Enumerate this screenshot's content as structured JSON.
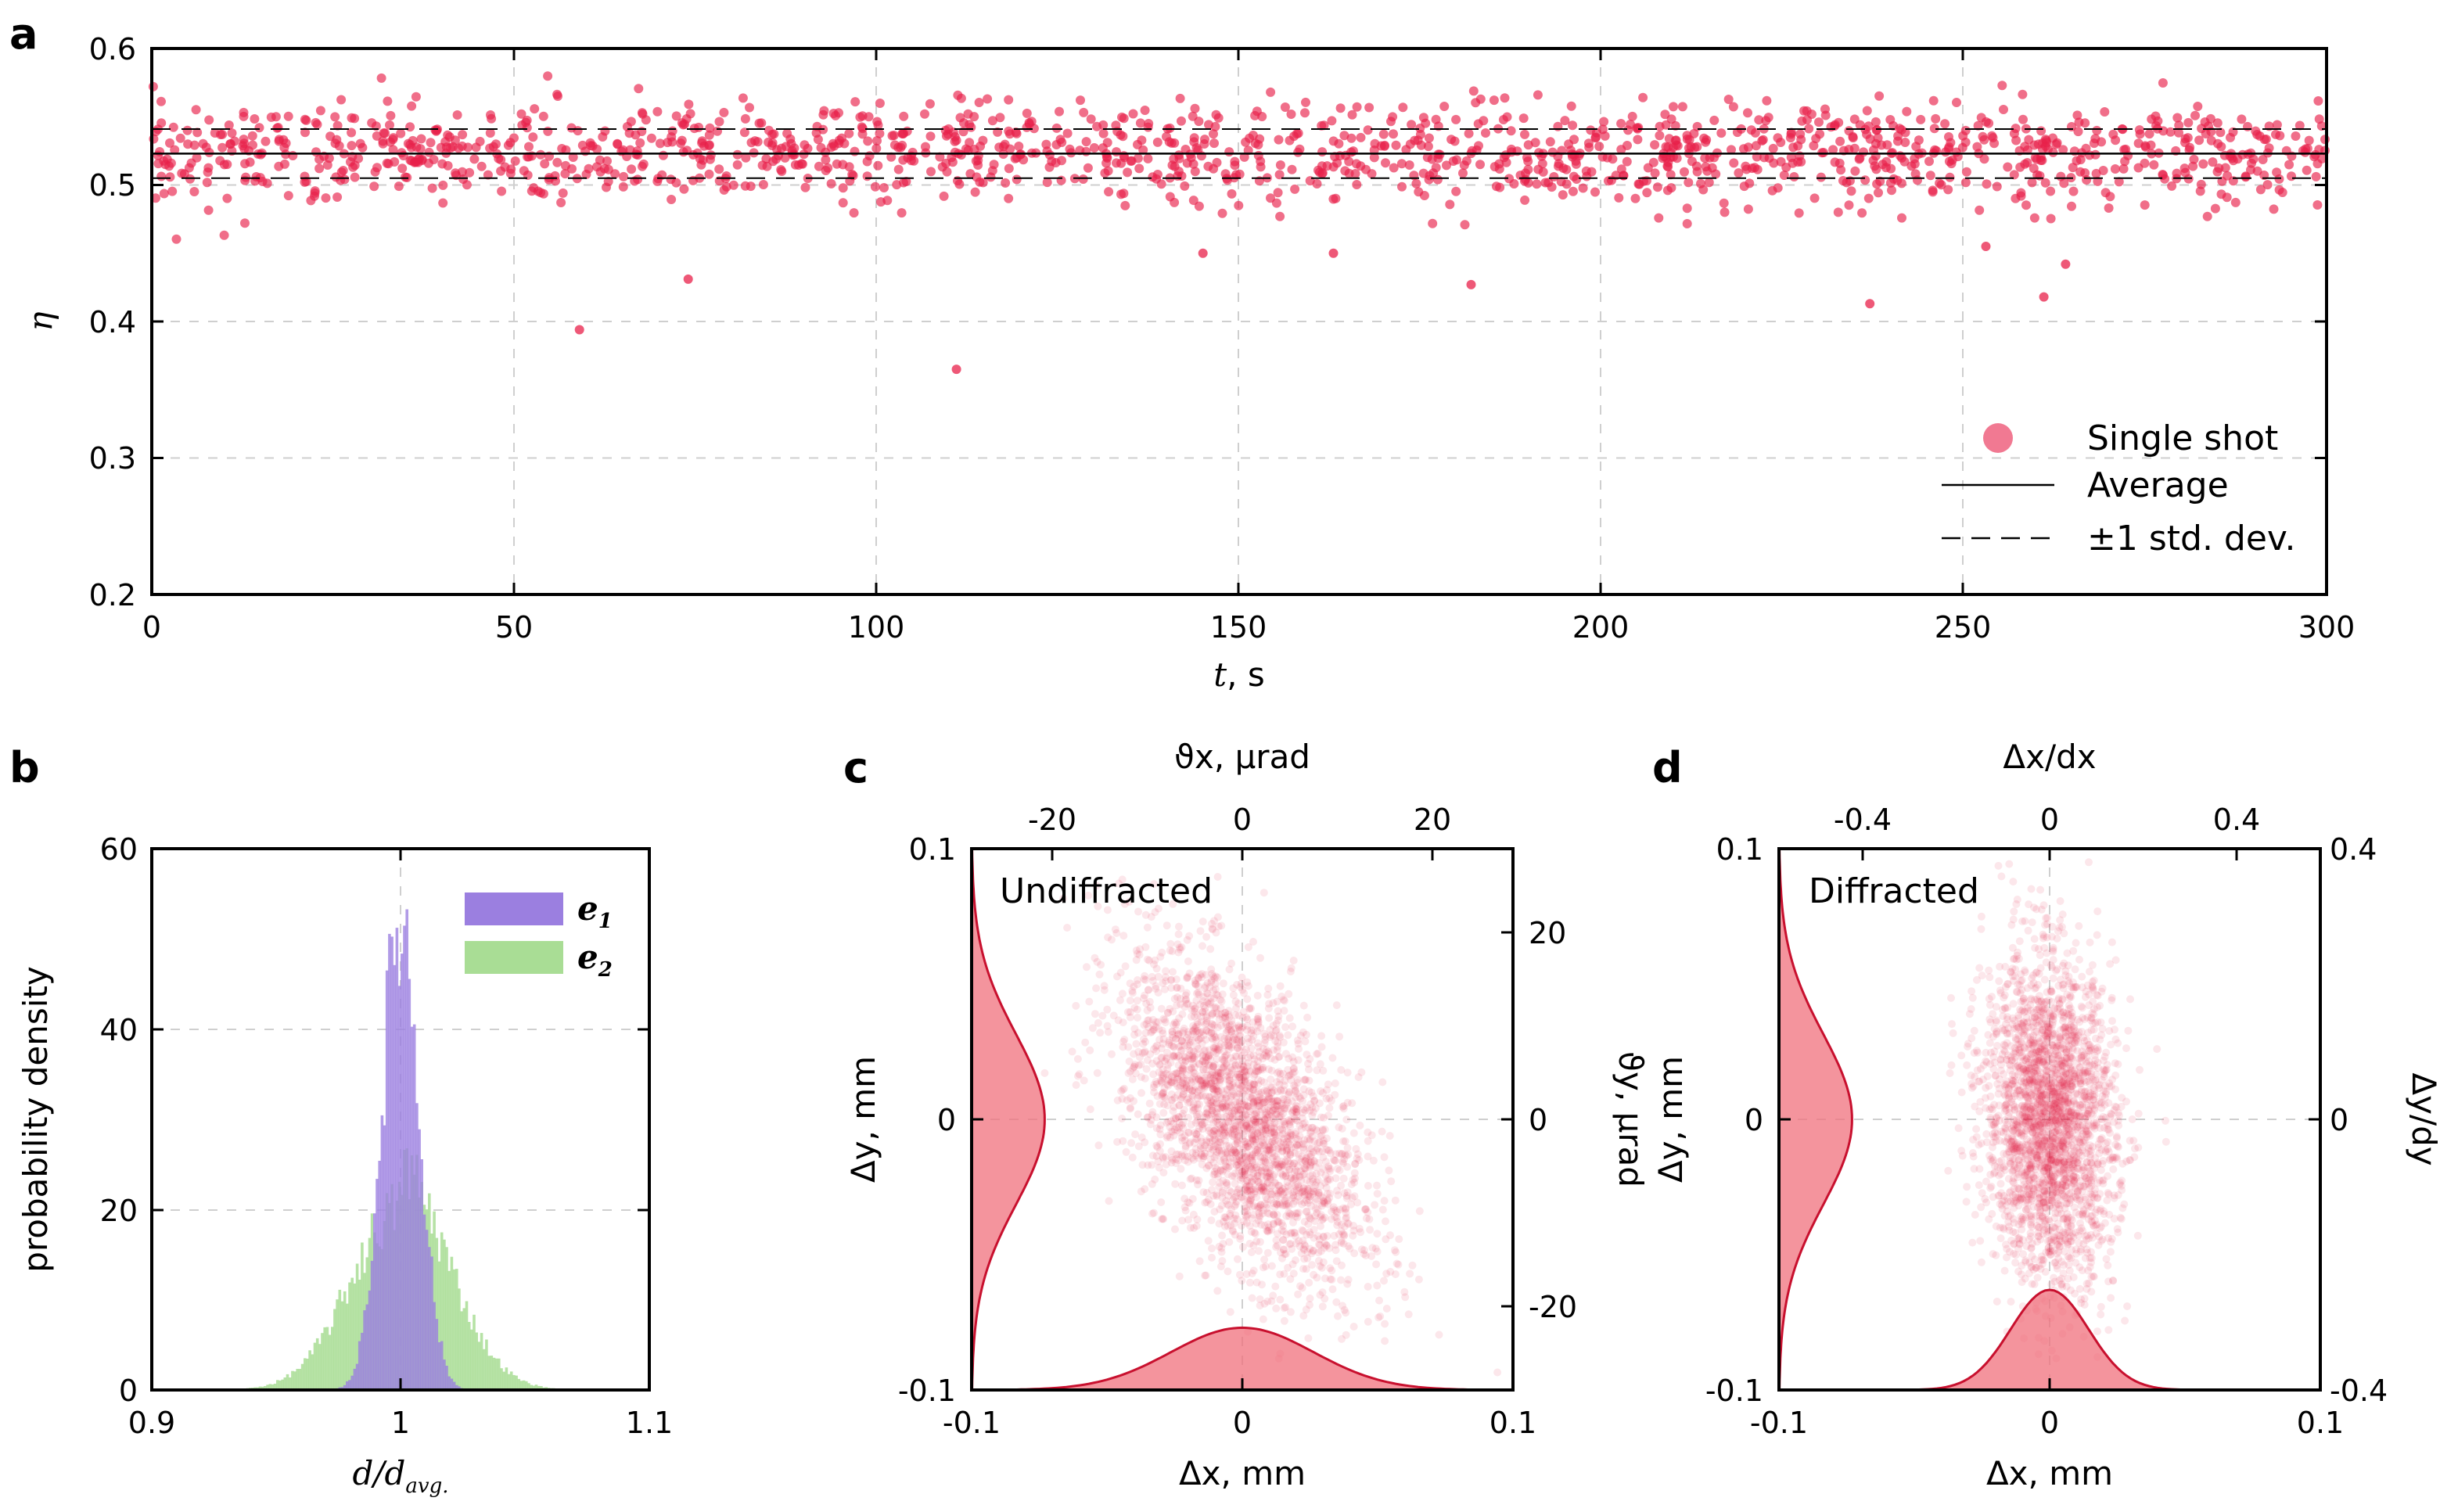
{
  "chart_data": [
    {
      "panel": "a",
      "type": "scatter",
      "xlabel": "t",
      "xlabel_unit": ", s",
      "ylabel": "η",
      "xlim": [
        0,
        300
      ],
      "ylim": [
        0.2,
        0.6
      ],
      "xticks": [
        0,
        50,
        100,
        150,
        200,
        250,
        300
      ],
      "yticks": [
        0.2,
        0.3,
        0.4,
        0.5,
        0.6
      ],
      "ytick_labels": [
        "0.2",
        "0.3",
        "0.4",
        "0.5",
        "0.6"
      ],
      "average": 0.523,
      "std_dev": 0.018,
      "n_points": 1500,
      "outliers": [
        [
          59,
          0.394
        ],
        [
          74,
          0.431
        ],
        [
          111,
          0.365
        ],
        [
          182,
          0.427
        ],
        [
          237,
          0.413
        ],
        [
          261,
          0.418
        ],
        [
          264,
          0.442
        ],
        [
          253,
          0.455
        ],
        [
          145,
          0.45
        ],
        [
          163,
          0.45
        ]
      ],
      "legend": [
        "Single shot",
        "Average",
        "±1 std. dev."
      ],
      "colors": {
        "points": "#e8204a",
        "lines": "#000000"
      }
    },
    {
      "panel": "b",
      "type": "histogram",
      "xlabel": "d/d",
      "xlabel_sub": "avg.",
      "ylabel": "probability density",
      "xlim": [
        0.9,
        1.1
      ],
      "ylim": [
        0,
        60
      ],
      "xticks": [
        0.9,
        1.0,
        1.1
      ],
      "xtick_labels": [
        "0.9",
        "1",
        "1.1"
      ],
      "yticks": [
        0,
        20,
        40,
        60
      ],
      "series": [
        {
          "name": "e",
          "sub": "1",
          "mean": 1.0,
          "sigma": 0.0075,
          "peak": 52,
          "color": "#9b7fe0"
        },
        {
          "name": "e",
          "sub": "2",
          "mean": 1.0,
          "sigma": 0.02,
          "peak": 20,
          "color": "#a9dd95"
        }
      ]
    },
    {
      "panel": "c",
      "type": "scatter",
      "annotation": "Undiffracted",
      "xlabel": "Δx, mm",
      "ylabel": "Δy, mm",
      "top_label": "ϑx, μrad",
      "right_label": "ϑy, μrad",
      "xlim": [
        -0.1,
        0.1
      ],
      "ylim": [
        -0.1,
        0.1
      ],
      "xticks": [
        -0.1,
        0,
        0.1
      ],
      "yticks": [
        -0.1,
        0,
        0.1
      ],
      "top_ticks": [
        -20,
        0,
        20
      ],
      "top_range": [
        -28.5,
        28.5
      ],
      "right_ticks": [
        -20,
        0,
        20
      ],
      "right_range": [
        -29,
        29
      ],
      "sx": 0.022,
      "sy": 0.03,
      "corr": -0.55,
      "marginal_x_peak": 0.023,
      "marginal_y_peak": 0.027
    },
    {
      "panel": "d",
      "type": "scatter",
      "annotation": "Diffracted",
      "xlabel": "Δx, mm",
      "ylabel": "Δy, mm",
      "top_label": "Δx/dx",
      "right_label": "Δy/dy",
      "xlim": [
        -0.1,
        0.1
      ],
      "ylim": [
        -0.1,
        0.1
      ],
      "xticks": [
        -0.1,
        0,
        0.1
      ],
      "yticks": [
        -0.1,
        0,
        0.1
      ],
      "top_ticks": [
        -0.4,
        0,
        0.4
      ],
      "top_range": [
        -0.58,
        0.58
      ],
      "right_ticks": [
        -0.4,
        0,
        0.4
      ],
      "right_range": [
        -0.4,
        0.4
      ],
      "sx": 0.012,
      "sy": 0.03,
      "corr": -0.1,
      "marginal_x_peak": 0.037,
      "marginal_y_peak": 0.027
    }
  ]
}
